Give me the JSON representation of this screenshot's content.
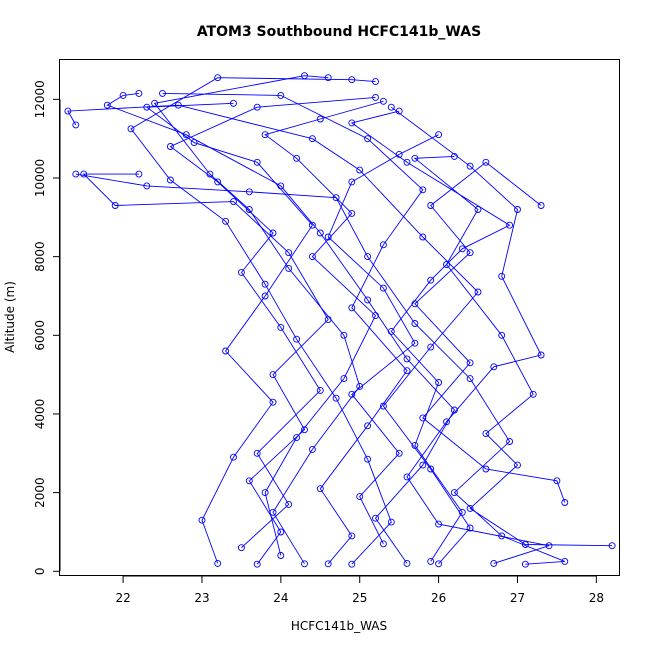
{
  "chart_data": {
    "type": "scatter",
    "title": "ATOM3 Southbound HCFC141b_WAS",
    "xlabel": "HCFC141b_WAS",
    "ylabel": "Altitude (m)",
    "xlim": [
      21.2,
      28.3
    ],
    "ylim": [
      -120,
      13000
    ],
    "x_ticks": [
      22,
      23,
      24,
      25,
      26,
      27,
      28
    ],
    "y_ticks": [
      0,
      2000,
      4000,
      6000,
      8000,
      10000,
      12000
    ],
    "grid": false,
    "legend": "none",
    "marker": "open-circle",
    "connected": true,
    "colors": {
      "series": "#0000ff",
      "axes": "#000000",
      "background": "#ffffff"
    },
    "series": [
      {
        "points": [
          [
            24.9,
            180
          ],
          [
            25.4,
            1250
          ],
          [
            25.1,
            2850
          ],
          [
            24.7,
            4400
          ],
          [
            24.2,
            5900
          ],
          [
            23.8,
            7300
          ],
          [
            23.3,
            8900
          ],
          [
            22.6,
            9950
          ],
          [
            22.1,
            11250
          ],
          [
            23.2,
            12550
          ],
          [
            24.9,
            12500
          ],
          [
            25.2,
            12450
          ]
        ]
      },
      {
        "points": [
          [
            24.3,
            190
          ],
          [
            23.9,
            1500
          ],
          [
            24.4,
            3100
          ],
          [
            25.0,
            4700
          ],
          [
            24.8,
            6000
          ],
          [
            24.1,
            7700
          ],
          [
            23.6,
            9200
          ],
          [
            23.1,
            10100
          ],
          [
            22.4,
            11900
          ],
          [
            24.3,
            12600
          ],
          [
            24.6,
            12550
          ]
        ]
      },
      {
        "points": [
          [
            25.6,
            200
          ],
          [
            25.2,
            1350
          ],
          [
            25.8,
            2700
          ],
          [
            26.2,
            4100
          ],
          [
            25.6,
            5400
          ],
          [
            25.1,
            6900
          ],
          [
            24.5,
            8600
          ],
          [
            24.0,
            9800
          ],
          [
            22.8,
            11100
          ],
          [
            21.8,
            11850
          ],
          [
            22.0,
            12100
          ],
          [
            22.2,
            12150
          ]
        ]
      },
      {
        "points": [
          [
            23.7,
            180
          ],
          [
            24.0,
            1000
          ],
          [
            23.6,
            2300
          ],
          [
            24.3,
            3600
          ],
          [
            23.9,
            5000
          ],
          [
            24.6,
            6400
          ],
          [
            24.1,
            8100
          ],
          [
            23.4,
            9400
          ],
          [
            21.9,
            9300
          ],
          [
            21.5,
            10100
          ],
          [
            22.2,
            10100
          ]
        ]
      },
      {
        "points": [
          [
            26.0,
            190
          ],
          [
            26.4,
            1100
          ],
          [
            25.9,
            2600
          ],
          [
            25.3,
            4200
          ],
          [
            25.9,
            5700
          ],
          [
            26.5,
            7100
          ],
          [
            25.8,
            8500
          ],
          [
            25.0,
            10200
          ],
          [
            24.4,
            11000
          ],
          [
            22.7,
            11850
          ],
          [
            21.3,
            11700
          ],
          [
            21.4,
            11350
          ]
        ]
      },
      {
        "points": [
          [
            27.1,
            180
          ],
          [
            27.6,
            250
          ],
          [
            26.8,
            900
          ],
          [
            26.2,
            2000
          ],
          [
            26.9,
            3300
          ],
          [
            26.4,
            4900
          ],
          [
            25.7,
            6300
          ],
          [
            25.1,
            8000
          ],
          [
            24.7,
            9500
          ],
          [
            23.6,
            9650
          ],
          [
            22.3,
            9800
          ],
          [
            21.4,
            10100
          ]
        ]
      },
      {
        "points": [
          [
            23.2,
            200
          ],
          [
            23.0,
            1300
          ],
          [
            23.4,
            2900
          ],
          [
            23.9,
            4300
          ],
          [
            23.3,
            5600
          ],
          [
            23.8,
            7000
          ],
          [
            24.4,
            8800
          ],
          [
            23.7,
            10400
          ],
          [
            22.9,
            10900
          ],
          [
            22.3,
            11800
          ],
          [
            23.4,
            11900
          ]
        ]
      },
      {
        "points": [
          [
            28.2,
            650
          ],
          [
            27.1,
            680
          ],
          [
            26.4,
            1600
          ],
          [
            27.0,
            2700
          ],
          [
            26.6,
            3500
          ],
          [
            27.2,
            4500
          ],
          [
            26.8,
            6000
          ],
          [
            26.1,
            7800
          ],
          [
            26.5,
            9200
          ],
          [
            25.7,
            10500
          ],
          [
            26.2,
            10550
          ]
        ]
      },
      {
        "points": [
          [
            24.6,
            190
          ],
          [
            24.9,
            900
          ],
          [
            24.5,
            2100
          ],
          [
            25.1,
            3700
          ],
          [
            25.6,
            5100
          ],
          [
            24.9,
            6700
          ],
          [
            25.3,
            8300
          ],
          [
            25.8,
            9700
          ],
          [
            25.1,
            11000
          ],
          [
            24.0,
            12100
          ],
          [
            22.5,
            12150
          ]
        ]
      },
      {
        "points": [
          [
            26.7,
            200
          ],
          [
            27.4,
            650
          ],
          [
            26.0,
            1200
          ],
          [
            25.6,
            2400
          ],
          [
            26.1,
            3800
          ],
          [
            26.7,
            5200
          ],
          [
            27.3,
            5500
          ],
          [
            26.8,
            7500
          ],
          [
            27.0,
            9200
          ],
          [
            26.4,
            10300
          ],
          [
            25.4,
            11800
          ]
        ]
      },
      {
        "points": [
          [
            23.5,
            600
          ],
          [
            24.1,
            1700
          ],
          [
            23.7,
            3000
          ],
          [
            24.5,
            4600
          ],
          [
            24.0,
            6200
          ],
          [
            23.5,
            7600
          ],
          [
            23.9,
            8600
          ],
          [
            23.2,
            9900
          ],
          [
            22.6,
            10800
          ],
          [
            23.7,
            11800
          ],
          [
            25.2,
            12050
          ]
        ]
      },
      {
        "points": [
          [
            25.9,
            250
          ],
          [
            26.3,
            1500
          ],
          [
            25.7,
            3200
          ],
          [
            26.0,
            4800
          ],
          [
            25.4,
            6100
          ],
          [
            25.9,
            7400
          ],
          [
            26.3,
            8200
          ],
          [
            26.9,
            8800
          ],
          [
            25.6,
            10400
          ],
          [
            24.9,
            11400
          ],
          [
            25.5,
            11700
          ]
        ]
      },
      {
        "points": [
          [
            24.0,
            400
          ],
          [
            23.8,
            2000
          ],
          [
            24.2,
            3400
          ],
          [
            24.8,
            4900
          ],
          [
            25.2,
            6500
          ],
          [
            24.4,
            8000
          ],
          [
            24.9,
            9100
          ],
          [
            24.2,
            10500
          ],
          [
            23.8,
            11100
          ],
          [
            24.5,
            11500
          ],
          [
            25.3,
            11950
          ]
        ]
      },
      {
        "points": [
          [
            27.6,
            1750
          ],
          [
            27.5,
            2300
          ],
          [
            26.6,
            2600
          ],
          [
            25.8,
            3900
          ],
          [
            26.4,
            5300
          ],
          [
            25.7,
            6800
          ],
          [
            26.4,
            8100
          ],
          [
            25.9,
            9300
          ],
          [
            26.6,
            10400
          ],
          [
            27.3,
            9300
          ]
        ]
      },
      {
        "points": [
          [
            25.3,
            700
          ],
          [
            25.0,
            1900
          ],
          [
            25.5,
            3000
          ],
          [
            24.9,
            4500
          ],
          [
            25.7,
            5800
          ],
          [
            25.3,
            7200
          ],
          [
            24.6,
            8500
          ],
          [
            24.9,
            9900
          ],
          [
            25.5,
            10600
          ],
          [
            26.0,
            11100
          ]
        ]
      }
    ]
  }
}
